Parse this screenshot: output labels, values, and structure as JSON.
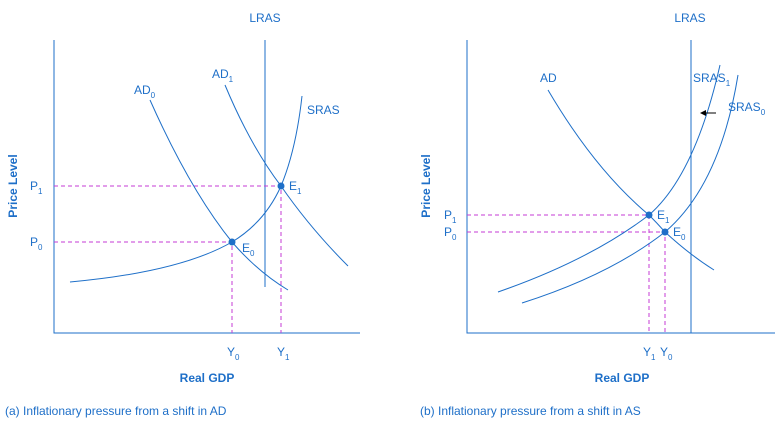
{
  "panels": [
    {
      "caption": "(a) Inflationary pressure from a shift in AD",
      "x_axis_label": "Real GDP",
      "y_axis_label": "Price Level",
      "curves": [
        {
          "main": "LRAS"
        },
        {
          "main": "AD",
          "sub": "0"
        },
        {
          "main": "AD",
          "sub": "1"
        },
        {
          "main": "SRAS"
        }
      ],
      "points": [
        {
          "main": "E",
          "sub": "0"
        },
        {
          "main": "E",
          "sub": "1"
        }
      ],
      "prices": [
        {
          "main": "P",
          "sub": "1"
        },
        {
          "main": "P",
          "sub": "0"
        }
      ],
      "outputs": [
        {
          "main": "Y",
          "sub": "0"
        },
        {
          "main": "Y",
          "sub": "1"
        }
      ]
    },
    {
      "caption": "(b) Inflationary pressure from a shift in AS",
      "x_axis_label": "Real GDP",
      "y_axis_label": "Price Level",
      "curves": [
        {
          "main": "LRAS"
        },
        {
          "main": "AD"
        },
        {
          "main": "SRAS",
          "sub": "1"
        },
        {
          "main": "SRAS",
          "sub": "0"
        }
      ],
      "points": [
        {
          "main": "E",
          "sub": "1"
        },
        {
          "main": "E",
          "sub": "0"
        }
      ],
      "prices": [
        {
          "main": "P",
          "sub": "1"
        },
        {
          "main": "P",
          "sub": "0"
        }
      ],
      "outputs": [
        {
          "main": "Y",
          "sub": "1"
        },
        {
          "main": "Y",
          "sub": "0"
        }
      ]
    }
  ]
}
